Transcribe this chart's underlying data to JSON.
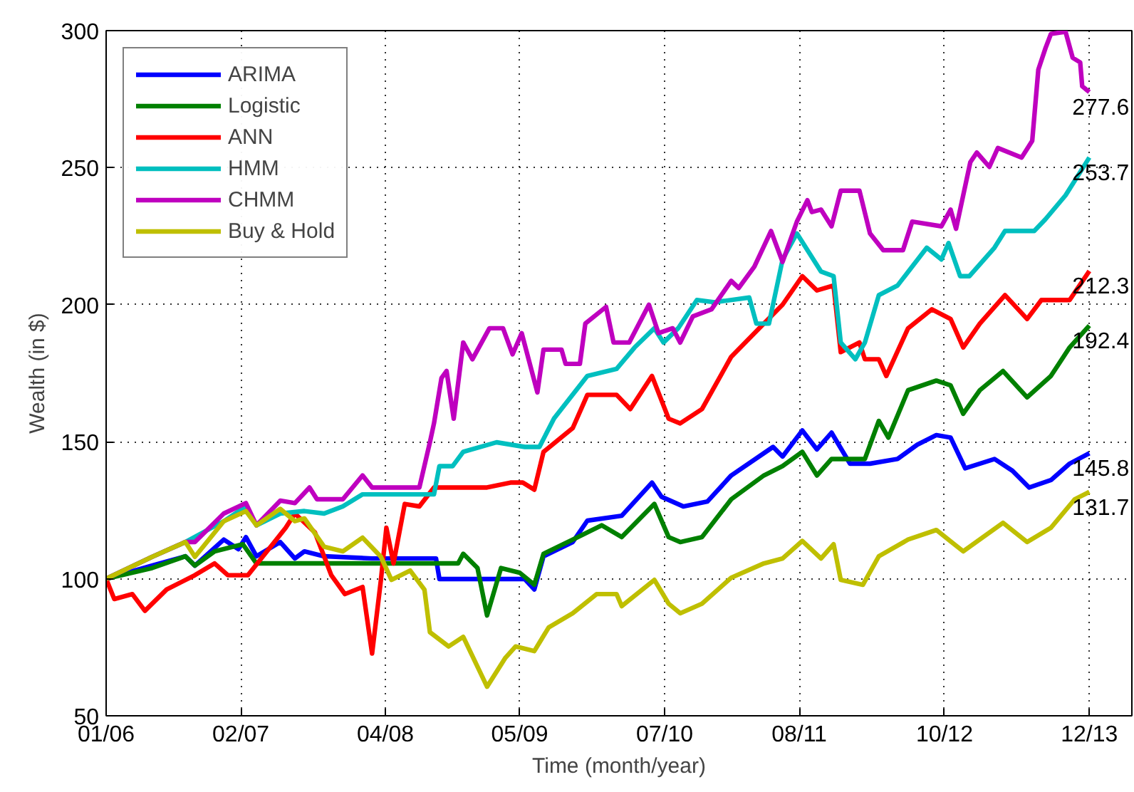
{
  "chart_data": {
    "type": "line",
    "xlabel": "Time (month/year)",
    "ylabel": "Wealth (in $)",
    "xlim": [
      "2006-01-01",
      "2014-04-05"
    ],
    "ylim": [
      50,
      300
    ],
    "xticks": [
      {
        "value": "2006-01-01",
        "label": "01/06"
      },
      {
        "value": "2007-02-01",
        "label": "02/07"
      },
      {
        "value": "2008-04-01",
        "label": "04/08"
      },
      {
        "value": "2009-05-01",
        "label": "05/09"
      },
      {
        "value": "2010-07-01",
        "label": "07/10"
      },
      {
        "value": "2011-08-01",
        "label": "08/11"
      },
      {
        "value": "2012-10-01",
        "label": "10/12"
      },
      {
        "value": "2013-12-01",
        "label": "12/13"
      }
    ],
    "yticks": [
      50,
      100,
      150,
      200,
      250,
      300
    ],
    "grid": true,
    "legend": "top left",
    "line_style": "solid",
    "series": [
      {
        "name": "ARIMA",
        "color": "#0000ff",
        "x": [
          "2006-01-01",
          "2006-05-16",
          "2006-08-22",
          "2006-09-19",
          "2006-12-13",
          "2007-01-25",
          "2007-02-16",
          "2007-03-19",
          "2007-05-28",
          "2007-07-10",
          "2007-08-07",
          "2007-10-04",
          "2008-02-22",
          "2008-08-28",
          "2008-09-07",
          "2009-05-16",
          "2009-06-13",
          "2009-07-10",
          "2009-10-04",
          "2009-11-16",
          "2010-02-25",
          "2010-05-25",
          "2010-06-22",
          "2010-08-25",
          "2010-11-04",
          "2011-01-13",
          "2011-05-16",
          "2011-06-13",
          "2011-08-10",
          "2011-09-22",
          "2011-11-04",
          "2011-12-28",
          "2012-02-25",
          "2012-05-16",
          "2012-07-13",
          "2012-09-07",
          "2012-10-19",
          "2012-12-01",
          "2013-02-25",
          "2013-04-19",
          "2013-06-07",
          "2013-08-10",
          "2013-10-04",
          "2013-12-01"
        ],
        "values": [
          100,
          104.8,
          108.2,
          104.8,
          114.3,
          110.8,
          115.2,
          108.2,
          113.4,
          107.4,
          110,
          108.2,
          107.4,
          107.4,
          99.9,
          99.9,
          96.1,
          108.2,
          113.4,
          121.2,
          123,
          135.1,
          129.9,
          126.4,
          128.2,
          137.7,
          148.1,
          144.6,
          154.1,
          147.2,
          153.3,
          142,
          142,
          143.7,
          148.9,
          152.4,
          151.5,
          140.3,
          143.7,
          139.4,
          133.3,
          136,
          142,
          145.8
        ]
      },
      {
        "name": "Logistic",
        "color": "#008000",
        "x": [
          "2006-01-01",
          "2006-05-16",
          "2006-08-22",
          "2006-09-19",
          "2006-11-16",
          "2007-02-07",
          "2007-03-19",
          "2008-11-01",
          "2008-11-16",
          "2008-12-28",
          "2009-01-25",
          "2009-03-07",
          "2009-05-01",
          "2009-06-13",
          "2009-07-10",
          "2009-10-04",
          "2009-12-28",
          "2010-02-25",
          "2010-06-01",
          "2010-07-13",
          "2010-08-16",
          "2010-10-19",
          "2011-01-13",
          "2011-04-19",
          "2011-06-13",
          "2011-08-10",
          "2011-09-22",
          "2011-11-04",
          "2012-02-10",
          "2012-03-22",
          "2012-04-19",
          "2012-06-16",
          "2012-09-07",
          "2012-10-19",
          "2012-11-25",
          "2013-01-13",
          "2013-03-22",
          "2013-06-01",
          "2013-08-10",
          "2013-10-04",
          "2013-12-01"
        ],
        "values": [
          100,
          103.9,
          108.2,
          104.8,
          110,
          112.6,
          105.6,
          105.6,
          109.1,
          103.9,
          86.6,
          103.9,
          102.2,
          97.8,
          109.1,
          114.3,
          119.5,
          115.2,
          127.3,
          115.2,
          113.4,
          115.2,
          129,
          137.7,
          141.1,
          146.3,
          137.7,
          143.7,
          143.7,
          157.6,
          151.5,
          168.8,
          172.3,
          170.6,
          160.2,
          168.8,
          175.8,
          166.2,
          174,
          184.4,
          192.4
        ]
      },
      {
        "name": "ANN",
        "color": "#ff0000",
        "x": [
          "2006-01-01",
          "2006-01-25",
          "2006-03-19",
          "2006-04-25",
          "2006-06-28",
          "2006-09-19",
          "2006-11-16",
          "2006-12-25",
          "2007-02-22",
          "2007-04-19",
          "2007-06-13",
          "2007-07-10",
          "2007-09-07",
          "2007-10-25",
          "2007-12-04",
          "2008-01-25",
          "2008-02-22",
          "2008-03-19",
          "2008-04-04",
          "2008-04-25",
          "2008-05-28",
          "2008-07-10",
          "2008-08-22",
          "2009-01-25",
          "2009-04-04",
          "2009-05-10",
          "2009-06-13",
          "2009-07-10",
          "2009-10-04",
          "2009-11-16",
          "2010-02-10",
          "2010-03-22",
          "2010-05-25",
          "2010-07-13",
          "2010-08-16",
          "2010-10-19",
          "2011-01-13",
          "2011-04-19",
          "2011-06-13",
          "2011-08-10",
          "2011-09-22",
          "2011-11-10",
          "2011-12-01",
          "2012-01-25",
          "2012-02-10",
          "2012-03-22",
          "2012-04-13",
          "2012-06-16",
          "2012-08-25",
          "2012-10-19",
          "2012-11-25",
          "2013-01-13",
          "2013-03-28",
          "2013-06-01",
          "2013-07-13",
          "2013-10-04",
          "2013-12-01"
        ],
        "values": [
          100,
          92.6,
          94.4,
          88.3,
          96.1,
          101.3,
          105.6,
          101.3,
          101.3,
          110,
          118.6,
          123.8,
          116.9,
          101.3,
          94.4,
          97,
          72.7,
          99.6,
          118.6,
          105.6,
          127.3,
          126.4,
          133.3,
          133.3,
          135.1,
          135.1,
          132.5,
          146.3,
          155,
          167.1,
          167.1,
          161.9,
          174,
          158.4,
          156.7,
          161.9,
          181,
          193.1,
          200,
          210.4,
          205.2,
          207,
          182.7,
          186.2,
          180.1,
          180.1,
          174,
          191.4,
          198.3,
          194.8,
          184.4,
          193.1,
          203.5,
          194.8,
          201.7,
          201.7,
          212.3
        ]
      },
      {
        "name": "HMM",
        "color": "#00bfbf",
        "x": [
          "2006-01-01",
          "2006-05-16",
          "2006-08-22",
          "2006-12-13",
          "2007-02-16",
          "2007-03-19",
          "2007-05-28",
          "2007-08-07",
          "2007-10-04",
          "2007-11-28",
          "2008-01-25",
          "2008-08-22",
          "2008-09-07",
          "2008-10-16",
          "2008-11-16",
          "2009-02-22",
          "2009-05-16",
          "2009-06-28",
          "2009-08-10",
          "2009-11-16",
          "2010-02-10",
          "2010-04-04",
          "2010-06-01",
          "2010-06-28",
          "2010-08-10",
          "2010-10-04",
          "2010-11-25",
          "2011-03-07",
          "2011-03-28",
          "2011-05-04",
          "2011-06-13",
          "2011-07-25",
          "2011-10-04",
          "2011-11-10",
          "2011-12-01",
          "2012-01-13",
          "2012-02-10",
          "2012-03-22",
          "2012-05-16",
          "2012-08-10",
          "2012-09-22",
          "2012-10-13",
          "2012-11-16",
          "2012-12-13",
          "2013-02-25",
          "2013-03-28",
          "2013-06-22",
          "2013-07-25",
          "2013-09-22",
          "2013-12-01"
        ],
        "values": [
          100,
          108,
          113.4,
          121,
          126.4,
          119.5,
          123.8,
          124.7,
          123.8,
          126.4,
          130.8,
          130.8,
          141.1,
          141.1,
          146.3,
          149.8,
          148.1,
          148.1,
          158.5,
          174,
          176.6,
          184.4,
          191.4,
          186.2,
          191.4,
          201.7,
          200.9,
          202.6,
          193.1,
          193.1,
          216.5,
          226,
          212.1,
          210.4,
          186.2,
          180.1,
          186.2,
          203.5,
          207,
          220.8,
          216.5,
          222.5,
          210.4,
          210.4,
          220.8,
          226.9,
          226.9,
          231.2,
          239.9,
          253.7
        ]
      },
      {
        "name": "CHMM",
        "color": "#bf00bf",
        "x": [
          "2006-01-01",
          "2006-05-16",
          "2006-08-22",
          "2006-09-19",
          "2006-12-13",
          "2007-02-16",
          "2007-03-19",
          "2007-05-28",
          "2007-07-10",
          "2007-08-22",
          "2007-09-13",
          "2007-11-28",
          "2008-01-25",
          "2008-02-22",
          "2008-07-10",
          "2008-08-10",
          "2008-08-22",
          "2008-09-13",
          "2008-09-28",
          "2008-10-19",
          "2008-11-16",
          "2008-12-13",
          "2009-02-01",
          "2009-03-13",
          "2009-04-10",
          "2009-05-07",
          "2009-06-22",
          "2009-07-10",
          "2009-09-01",
          "2009-09-13",
          "2009-10-25",
          "2009-11-10",
          "2010-01-10",
          "2010-02-01",
          "2010-03-19",
          "2010-05-16",
          "2010-06-13",
          "2010-07-25",
          "2010-08-16",
          "2010-09-22",
          "2010-11-16",
          "2011-01-13",
          "2011-02-04",
          "2011-03-22",
          "2011-05-10",
          "2011-06-13",
          "2011-07-25",
          "2011-08-25",
          "2011-09-07",
          "2011-10-04",
          "2011-11-04",
          "2011-12-01",
          "2012-01-25",
          "2012-02-25",
          "2012-04-04",
          "2012-06-01",
          "2012-06-28",
          "2012-09-22",
          "2012-10-19",
          "2012-11-04",
          "2012-12-16",
          "2013-01-04",
          "2013-02-10",
          "2013-03-07",
          "2013-05-16",
          "2013-06-16",
          "2013-07-04",
          "2013-07-25",
          "2013-08-10",
          "2013-09-22",
          "2013-10-13",
          "2013-11-04",
          "2013-11-10",
          "2013-12-01"
        ],
        "values": [
          100,
          108,
          113.4,
          113.4,
          123.8,
          127.6,
          119.5,
          128.5,
          127.6,
          133.3,
          129,
          129,
          137.7,
          133.3,
          133.3,
          149.8,
          156.7,
          173.2,
          175.8,
          158.4,
          186.2,
          180.1,
          191.4,
          191.4,
          181.9,
          189.6,
          168,
          183.6,
          183.6,
          178.4,
          178.4,
          193.1,
          199.2,
          186.2,
          186.2,
          200,
          189.6,
          191.4,
          186.2,
          195.7,
          198.3,
          208.7,
          206.1,
          213.9,
          226.9,
          215.6,
          230.3,
          238.1,
          233.8,
          234.7,
          228.6,
          241.6,
          241.6,
          226,
          219.9,
          219.9,
          230.3,
          228.6,
          234.7,
          227.7,
          252,
          255.5,
          250.3,
          257.2,
          253.7,
          259.8,
          285.8,
          293.6,
          298.8,
          299.6,
          290.1,
          288.4,
          279.7,
          277.6
        ]
      },
      {
        "name": "Buy & Hold",
        "color": "#bfbf00",
        "x": [
          "2006-01-01",
          "2006-05-16",
          "2006-08-22",
          "2006-09-19",
          "2006-12-13",
          "2007-02-16",
          "2007-03-19",
          "2007-05-28",
          "2007-07-10",
          "2007-08-07",
          "2007-10-04",
          "2007-11-28",
          "2008-01-25",
          "2008-03-19",
          "2008-04-19",
          "2008-06-13",
          "2008-07-25",
          "2008-08-10",
          "2008-10-04",
          "2008-11-16",
          "2008-12-13",
          "2009-01-25",
          "2009-03-19",
          "2009-04-19",
          "2009-06-13",
          "2009-07-25",
          "2009-10-04",
          "2009-12-13",
          "2010-02-10",
          "2010-02-25",
          "2010-06-01",
          "2010-07-13",
          "2010-08-16",
          "2010-10-19",
          "2011-01-13",
          "2011-04-19",
          "2011-06-13",
          "2011-08-10",
          "2011-10-04",
          "2011-11-10",
          "2011-12-01",
          "2012-02-04",
          "2012-03-22",
          "2012-06-16",
          "2012-09-07",
          "2012-11-25",
          "2013-03-22",
          "2013-06-01",
          "2013-08-10",
          "2013-10-19",
          "2013-12-01"
        ],
        "values": [
          100,
          108,
          113.4,
          108,
          121,
          124.7,
          119.5,
          125.5,
          121,
          122,
          111.7,
          110,
          115,
          108,
          99.6,
          103,
          96,
          80.5,
          75.3,
          78.8,
          71.8,
          60.6,
          71,
          75.3,
          73.6,
          82.2,
          87.4,
          94.4,
          94.4,
          90,
          99.6,
          90.9,
          87.4,
          90.9,
          100.4,
          105.6,
          107.4,
          113.8,
          107.4,
          112.6,
          99.6,
          97.8,
          108.2,
          114.3,
          117.8,
          110,
          120.4,
          113.4,
          118.6,
          129,
          131.7
        ]
      }
    ],
    "annotations": [
      {
        "text": "277.6",
        "x": "2013-12-01",
        "y": 277.6
      },
      {
        "text": "253.7",
        "x": "2013-12-01",
        "y": 253.7
      },
      {
        "text": "212.3",
        "x": "2013-12-01",
        "y": 212.3
      },
      {
        "text": "192.4",
        "x": "2013-12-01",
        "y": 192.4
      },
      {
        "text": "145.8",
        "x": "2013-12-01",
        "y": 145.8
      },
      {
        "text": "131.7",
        "x": "2013-12-01",
        "y": 131.7
      }
    ]
  }
}
